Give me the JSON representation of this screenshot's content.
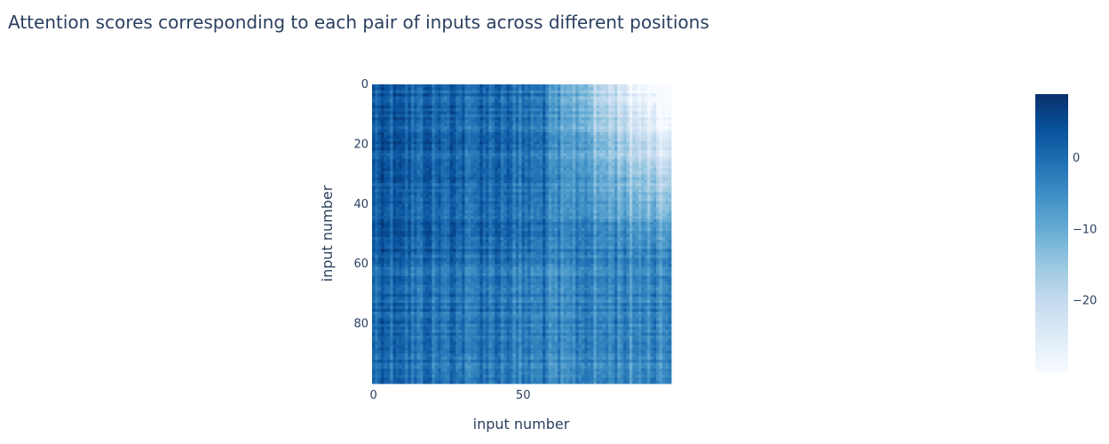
{
  "chart_data": {
    "type": "heatmap",
    "title": "Attention scores corresponding to each pair of inputs across different positions",
    "xlabel": "input number",
    "ylabel": "input number",
    "x_tick_labels": [
      "0",
      "50"
    ],
    "x_tick_values": [
      0,
      50
    ],
    "y_tick_labels": [
      "0",
      "20",
      "40",
      "60",
      "80"
    ],
    "y_tick_values": [
      0,
      20,
      40,
      60,
      80
    ],
    "n_rows": 100,
    "n_cols": 100,
    "y_reversed": true,
    "colorscale": {
      "name": "Blues",
      "min": -30,
      "max": 9,
      "tick_labels": [
        "0",
        "−10",
        "−20"
      ],
      "tick_values": [
        0,
        -10,
        -20
      ],
      "colors": [
        "#f7fbff",
        "#deebf7",
        "#c6dbef",
        "#9ecae1",
        "#6baed6",
        "#4292c6",
        "#2171b5",
        "#08519c",
        "#08306b"
      ]
    }
  }
}
